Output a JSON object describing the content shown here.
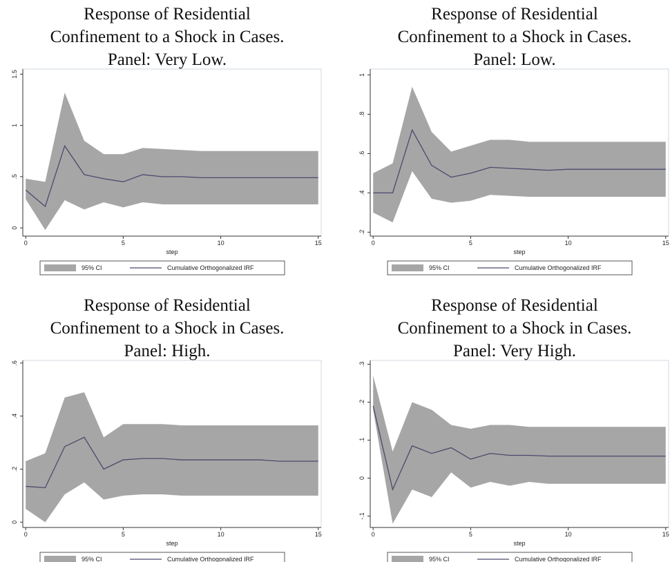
{
  "chart_data": [
    {
      "type": "line",
      "title": [
        "Response of Residential",
        "Confinement to a Shock in Cases.",
        "Panel: Very Low."
      ],
      "x_label": "step",
      "x": [
        0,
        1,
        2,
        3,
        4,
        5,
        6,
        7,
        8,
        9,
        10,
        11,
        12,
        13,
        14,
        15
      ],
      "xlim": [
        -0.15,
        15.15
      ],
      "xticks": [
        0,
        5,
        10,
        15
      ],
      "ylim": [
        -0.08,
        1.55
      ],
      "yticks": [
        0,
        {
          "value": 0.5,
          "label": ".5"
        },
        1,
        1.5
      ],
      "series": [
        {
          "name": "95% CI",
          "color": "#a6a6a6",
          "upper": [
            0.48,
            0.45,
            1.32,
            0.85,
            0.72,
            0.72,
            0.78,
            0.77,
            0.76,
            0.75,
            0.75,
            0.75,
            0.75,
            0.75,
            0.75,
            0.75
          ],
          "lower": [
            0.28,
            -0.02,
            0.27,
            0.18,
            0.25,
            0.2,
            0.25,
            0.23,
            0.23,
            0.23,
            0.23,
            0.23,
            0.23,
            0.23,
            0.23,
            0.23
          ]
        },
        {
          "name": "Cumulative Orthogonalized IRF",
          "color": "#4a4a6e",
          "values": [
            0.37,
            0.21,
            0.8,
            0.52,
            0.48,
            0.45,
            0.52,
            0.5,
            0.5,
            0.49,
            0.49,
            0.49,
            0.49,
            0.49,
            0.49,
            0.49
          ]
        }
      ]
    },
    {
      "type": "line",
      "title": [
        "Response of Residential",
        "Confinement to a Shock in Cases.",
        "Panel: Low."
      ],
      "x_label": "step",
      "x": [
        0,
        1,
        2,
        3,
        4,
        5,
        6,
        7,
        8,
        9,
        10,
        11,
        12,
        13,
        14,
        15
      ],
      "xlim": [
        -0.15,
        15.15
      ],
      "xticks": [
        0,
        5,
        10,
        15
      ],
      "ylim": [
        0.18,
        1.03
      ],
      "yticks": [
        {
          "value": 0.2,
          "label": ".2"
        },
        {
          "value": 0.4,
          "label": ".4"
        },
        {
          "value": 0.6,
          "label": ".6"
        },
        {
          "value": 0.8,
          "label": ".8"
        },
        1
      ],
      "series": [
        {
          "name": "95% CI",
          "color": "#a6a6a6",
          "upper": [
            0.5,
            0.55,
            0.94,
            0.71,
            0.61,
            0.64,
            0.67,
            0.67,
            0.66,
            0.66,
            0.66,
            0.66,
            0.66,
            0.66,
            0.66,
            0.66
          ],
          "lower": [
            0.3,
            0.25,
            0.51,
            0.37,
            0.35,
            0.36,
            0.39,
            0.385,
            0.38,
            0.38,
            0.38,
            0.38,
            0.38,
            0.38,
            0.38,
            0.38
          ]
        },
        {
          "name": "Cumulative Orthogonalized IRF",
          "color": "#4a4a6e",
          "values": [
            0.4,
            0.4,
            0.72,
            0.54,
            0.48,
            0.5,
            0.53,
            0.525,
            0.52,
            0.515,
            0.52,
            0.52,
            0.52,
            0.52,
            0.52,
            0.52
          ]
        }
      ]
    },
    {
      "type": "line",
      "title": [
        "Response of Residential",
        "Confinement to a Shock in Cases.",
        "Panel: High."
      ],
      "x_label": "step",
      "x": [
        0,
        1,
        2,
        3,
        4,
        5,
        6,
        7,
        8,
        9,
        10,
        11,
        12,
        13,
        14,
        15
      ],
      "xlim": [
        -0.15,
        15.15
      ],
      "xticks": [
        0,
        5,
        10,
        15
      ],
      "ylim": [
        -0.02,
        0.61
      ],
      "yticks": [
        0,
        {
          "value": 0.2,
          "label": ".2"
        },
        {
          "value": 0.4,
          "label": ".4"
        },
        {
          "value": 0.6,
          "label": ".6"
        }
      ],
      "series": [
        {
          "name": "95% CI",
          "color": "#a6a6a6",
          "upper": [
            0.23,
            0.26,
            0.47,
            0.49,
            0.32,
            0.37,
            0.37,
            0.37,
            0.365,
            0.365,
            0.365,
            0.365,
            0.365,
            0.365,
            0.365,
            0.365
          ],
          "lower": [
            0.05,
            0.0,
            0.105,
            0.15,
            0.085,
            0.1,
            0.105,
            0.105,
            0.1,
            0.1,
            0.1,
            0.1,
            0.1,
            0.1,
            0.1,
            0.1
          ]
        },
        {
          "name": "Cumulative Orthogonalized IRF",
          "color": "#4a4a6e",
          "values": [
            0.135,
            0.13,
            0.285,
            0.32,
            0.2,
            0.235,
            0.24,
            0.24,
            0.235,
            0.235,
            0.235,
            0.235,
            0.235,
            0.23,
            0.23,
            0.23
          ]
        }
      ]
    },
    {
      "type": "line",
      "title": [
        "Response of Residential",
        "Confinement to a Shock in Cases.",
        "Panel: Very High."
      ],
      "x_label": "step",
      "x": [
        0,
        1,
        2,
        3,
        4,
        5,
        6,
        7,
        8,
        9,
        10,
        11,
        12,
        13,
        14,
        15
      ],
      "xlim": [
        -0.15,
        15.15
      ],
      "xticks": [
        0,
        5,
        10,
        15
      ],
      "ylim": [
        -0.13,
        0.31
      ],
      "yticks": [
        {
          "value": -0.1,
          "label": "-.1"
        },
        0,
        {
          "value": 0.1,
          "label": ".1"
        },
        {
          "value": 0.2,
          "label": ".2"
        },
        {
          "value": 0.3,
          "label": ".3"
        }
      ],
      "series": [
        {
          "name": "95% CI",
          "color": "#a6a6a6",
          "upper": [
            0.27,
            0.07,
            0.2,
            0.18,
            0.14,
            0.13,
            0.14,
            0.14,
            0.135,
            0.135,
            0.135,
            0.135,
            0.135,
            0.135,
            0.135,
            0.135
          ],
          "lower": [
            0.18,
            -0.12,
            -0.03,
            -0.05,
            0.015,
            -0.025,
            -0.01,
            -0.02,
            -0.01,
            -0.015,
            -0.015,
            -0.015,
            -0.015,
            -0.015,
            -0.015,
            -0.015
          ]
        },
        {
          "name": "Cumulative Orthogonalized IRF",
          "color": "#4a4a6e",
          "values": [
            0.19,
            -0.03,
            0.085,
            0.065,
            0.08,
            0.05,
            0.065,
            0.06,
            0.06,
            0.058,
            0.058,
            0.058,
            0.058,
            0.058,
            0.058,
            0.058
          ]
        }
      ]
    }
  ]
}
